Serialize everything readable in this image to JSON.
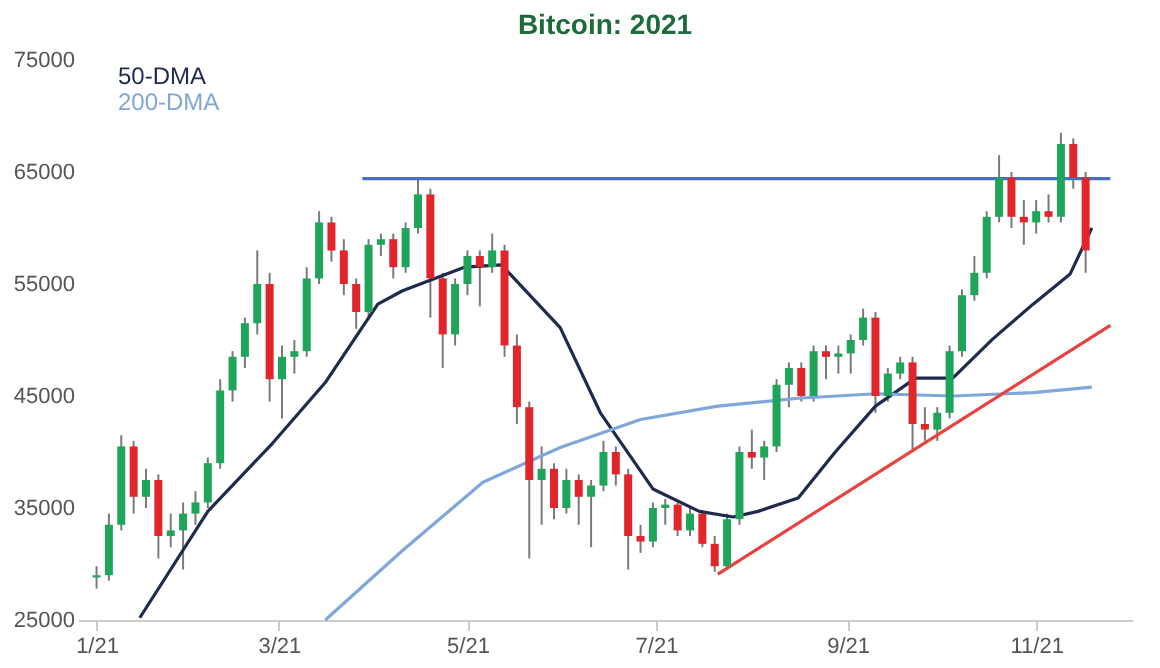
{
  "chart_data": {
    "type": "candlestick",
    "title": "Bitcoin: 2021",
    "x": [
      "2021-01-01",
      "2021-01-05",
      "2021-01-09",
      "2021-01-13",
      "2021-01-17",
      "2021-01-21",
      "2021-01-25",
      "2021-01-29",
      "2021-02-02",
      "2021-02-06",
      "2021-02-10",
      "2021-02-14",
      "2021-02-18",
      "2021-02-22",
      "2021-02-26",
      "2021-03-02",
      "2021-03-06",
      "2021-03-10",
      "2021-03-14",
      "2021-03-18",
      "2021-03-22",
      "2021-03-26",
      "2021-03-30",
      "2021-04-03",
      "2021-04-07",
      "2021-04-11",
      "2021-04-15",
      "2021-04-19",
      "2021-04-23",
      "2021-04-27",
      "2021-05-01",
      "2021-05-05",
      "2021-05-09",
      "2021-05-13",
      "2021-05-17",
      "2021-05-21",
      "2021-05-25",
      "2021-05-29",
      "2021-06-02",
      "2021-06-06",
      "2021-06-10",
      "2021-06-14",
      "2021-06-18",
      "2021-06-22",
      "2021-06-26",
      "2021-06-30",
      "2021-07-04",
      "2021-07-08",
      "2021-07-12",
      "2021-07-16",
      "2021-07-20",
      "2021-07-24",
      "2021-07-28",
      "2021-08-01",
      "2021-08-05",
      "2021-08-09",
      "2021-08-13",
      "2021-08-17",
      "2021-08-21",
      "2021-08-25",
      "2021-08-29",
      "2021-09-02",
      "2021-09-06",
      "2021-09-10",
      "2021-09-14",
      "2021-09-18",
      "2021-09-22",
      "2021-09-26",
      "2021-09-30",
      "2021-10-04",
      "2021-10-08",
      "2021-10-12",
      "2021-10-16",
      "2021-10-20",
      "2021-10-24",
      "2021-10-28",
      "2021-11-01",
      "2021-11-05",
      "2021-11-09",
      "2021-11-13",
      "2021-11-17"
    ],
    "ohlc": [
      [
        28800,
        29800,
        27800,
        29000
      ],
      [
        29000,
        34500,
        28500,
        33500
      ],
      [
        33500,
        41500,
        33000,
        40500
      ],
      [
        40500,
        41000,
        34500,
        36000
      ],
      [
        36000,
        38500,
        35000,
        37500
      ],
      [
        37500,
        38000,
        30500,
        32500
      ],
      [
        32500,
        34500,
        31500,
        33000
      ],
      [
        33000,
        35500,
        29500,
        34500
      ],
      [
        34500,
        36500,
        33500,
        35500
      ],
      [
        35500,
        39500,
        35000,
        39000
      ],
      [
        39000,
        46500,
        38500,
        45500
      ],
      [
        45500,
        49000,
        44500,
        48500
      ],
      [
        48500,
        52000,
        47500,
        51500
      ],
      [
        51500,
        58000,
        50500,
        55000
      ],
      [
        55000,
        56000,
        44500,
        46500
      ],
      [
        46500,
        49500,
        43000,
        48500
      ],
      [
        48500,
        50000,
        47000,
        49000
      ],
      [
        49000,
        56500,
        48500,
        55500
      ],
      [
        55500,
        61500,
        55000,
        60500
      ],
      [
        60500,
        61000,
        57000,
        58000
      ],
      [
        58000,
        59000,
        54000,
        55000
      ],
      [
        55000,
        55500,
        51000,
        52500
      ],
      [
        52500,
        59000,
        52000,
        58500
      ],
      [
        58500,
        59500,
        57500,
        59000
      ],
      [
        59000,
        59500,
        55500,
        56500
      ],
      [
        56500,
        60500,
        56000,
        60000
      ],
      [
        60000,
        64500,
        59500,
        63000
      ],
      [
        63000,
        63500,
        52000,
        55500
      ],
      [
        55500,
        56000,
        47500,
        50500
      ],
      [
        50500,
        55500,
        49500,
        55000
      ],
      [
        55000,
        58000,
        54000,
        57500
      ],
      [
        57500,
        58000,
        53000,
        56500
      ],
      [
        56500,
        59500,
        56000,
        58000
      ],
      [
        58000,
        58500,
        48500,
        49500
      ],
      [
        49500,
        50500,
        42500,
        44000
      ],
      [
        44000,
        44500,
        30500,
        37500
      ],
      [
        37500,
        40500,
        33500,
        38500
      ],
      [
        38500,
        39000,
        34000,
        35000
      ],
      [
        35000,
        38500,
        34500,
        37500
      ],
      [
        37500,
        38000,
        33500,
        36000
      ],
      [
        36000,
        37500,
        31500,
        37000
      ],
      [
        37000,
        41000,
        36500,
        40000
      ],
      [
        40000,
        40500,
        37000,
        38000
      ],
      [
        38000,
        38500,
        29500,
        32500
      ],
      [
        32500,
        33500,
        31000,
        32000
      ],
      [
        32000,
        35500,
        31500,
        35000
      ],
      [
        35000,
        35800,
        33500,
        35300
      ],
      [
        35300,
        35500,
        32500,
        33000
      ],
      [
        33000,
        35000,
        32500,
        34500
      ],
      [
        34500,
        34800,
        31500,
        31800
      ],
      [
        31800,
        32500,
        29300,
        29800
      ],
      [
        29800,
        34500,
        29500,
        34000
      ],
      [
        34000,
        40500,
        33500,
        40000
      ],
      [
        40000,
        42000,
        38500,
        39500
      ],
      [
        39500,
        41000,
        37500,
        40500
      ],
      [
        40500,
        46500,
        40000,
        46000
      ],
      [
        46000,
        48000,
        44000,
        47500
      ],
      [
        47500,
        48000,
        44500,
        45000
      ],
      [
        45000,
        49500,
        44500,
        49000
      ],
      [
        49000,
        49500,
        46500,
        48500
      ],
      [
        48500,
        49500,
        47000,
        48800
      ],
      [
        48800,
        50500,
        47000,
        50000
      ],
      [
        50000,
        52800,
        49500,
        52000
      ],
      [
        52000,
        52500,
        43500,
        45000
      ],
      [
        45000,
        47500,
        44500,
        47000
      ],
      [
        47000,
        48500,
        46500,
        48000
      ],
      [
        48000,
        48500,
        40000,
        42500
      ],
      [
        42500,
        44000,
        41000,
        42000
      ],
      [
        42000,
        44000,
        41000,
        43500
      ],
      [
        43500,
        49500,
        43000,
        49000
      ],
      [
        49000,
        54500,
        48500,
        54000
      ],
      [
        54000,
        57500,
        53500,
        56000
      ],
      [
        56000,
        61500,
        55500,
        61000
      ],
      [
        61000,
        66500,
        60500,
        64500
      ],
      [
        64500,
        65000,
        60000,
        61000
      ],
      [
        61000,
        62500,
        58500,
        60500
      ],
      [
        60500,
        62500,
        59500,
        61500
      ],
      [
        61500,
        63000,
        60500,
        61000
      ],
      [
        61000,
        68500,
        60500,
        67500
      ],
      [
        67500,
        68000,
        63500,
        64500
      ],
      [
        64500,
        65000,
        56000,
        58000
      ]
    ],
    "series": [
      {
        "name": "50-DMA",
        "type": "line",
        "color": "#1f2a4f",
        "x": [
          "2021-01-15",
          "2021-02-06",
          "2021-02-27",
          "2021-03-16",
          "2021-04-02",
          "2021-04-10",
          "2021-04-30",
          "2021-05-12",
          "2021-05-31",
          "2021-06-13",
          "2021-06-30",
          "2021-07-15",
          "2021-07-26",
          "2021-08-03",
          "2021-08-16",
          "2021-08-28",
          "2021-09-10",
          "2021-09-23",
          "2021-10-05",
          "2021-10-18",
          "2021-10-31",
          "2021-11-12",
          "2021-11-19"
        ],
        "values": [
          25200,
          34700,
          40800,
          46200,
          53200,
          54400,
          56500,
          56700,
          51100,
          43500,
          36700,
          34700,
          34200,
          34700,
          35900,
          40000,
          44100,
          46600,
          46600,
          50100,
          53200,
          55900,
          60000
        ]
      },
      {
        "name": "200-DMA",
        "type": "line",
        "color": "#7fa7d9",
        "x": [
          "2021-03-16",
          "2021-04-10",
          "2021-05-06",
          "2021-05-31",
          "2021-06-26",
          "2021-07-21",
          "2021-08-16",
          "2021-09-10",
          "2021-10-05",
          "2021-10-31",
          "2021-11-19"
        ],
        "values": [
          25000,
          31200,
          37300,
          40400,
          42900,
          44100,
          44800,
          45200,
          45000,
          45300,
          45800
        ]
      },
      {
        "type": "line",
        "color": "#4a6fbf",
        "x": [
          "2021-03-28",
          "2021-11-25"
        ],
        "values": [
          64400,
          64400
        ]
      },
      {
        "type": "line",
        "color": "#e8423f",
        "x": [
          "2021-07-21",
          "2021-11-25"
        ],
        "values": [
          29100,
          51300
        ]
      }
    ],
    "xlim": [
      "2020-12-26",
      "2021-12-02"
    ],
    "xticks": [
      {
        "value": "2021-01-01",
        "label": "1/21"
      },
      {
        "value": "2021-03-01",
        "label": "3/21"
      },
      {
        "value": "2021-05-01",
        "label": "5/21"
      },
      {
        "value": "2021-07-01",
        "label": "7/21"
      },
      {
        "value": "2021-09-01",
        "label": "9/21"
      },
      {
        "value": "2021-11-01",
        "label": "11/21"
      }
    ],
    "ylim": [
      25000,
      75000
    ],
    "yticks": [
      25000,
      35000,
      45000,
      55000,
      65000,
      75000
    ],
    "grid": false,
    "legend": "top left"
  }
}
